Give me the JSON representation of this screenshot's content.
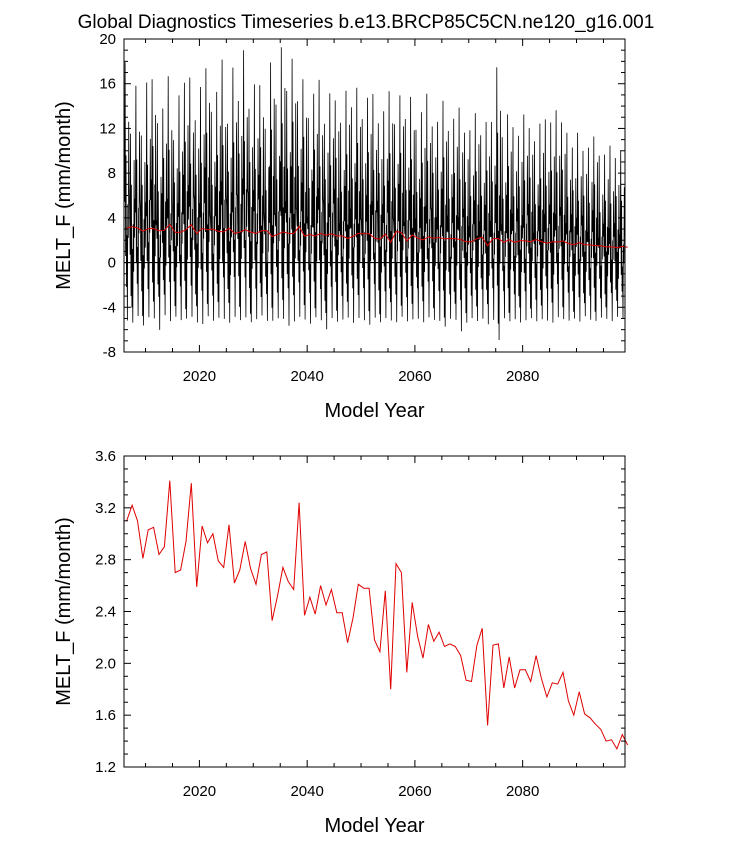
{
  "title": "Global Diagnostics Timeseries b.e13.BRCP85C5CN.ne120_g16.001",
  "colors": {
    "monthly": "#000000",
    "annual": "#e00000",
    "axis": "#000000",
    "background": "#ffffff"
  },
  "chart_data": [
    {
      "type": "line",
      "name": "monthly-timeseries",
      "xlabel": "Model Year",
      "ylabel": "MELT_F (mm/month)",
      "xlim": [
        2006,
        2099
      ],
      "ylim": [
        -8,
        20
      ],
      "xticks": [
        2020,
        2040,
        2060,
        2080
      ],
      "yticks": [
        -8,
        -4,
        0,
        4,
        8,
        12,
        16,
        20
      ],
      "ytick_labels": [
        "-8",
        "-4",
        "0",
        "4",
        "8",
        "12",
        "16",
        "20"
      ],
      "zero_line": 0,
      "series": [
        {
          "name": "monthly MELT_F",
          "color": "#000000",
          "description": "monthly values, strong seasonal cycle",
          "annual_peaks": [
            17.9,
            11.5,
            15.8,
            11.4,
            16.1,
            16.4,
            12.5,
            13.8,
            16.6,
            11.0,
            15.0,
            16.1,
            16.5,
            12.8,
            15.7,
            17.4,
            13.5,
            15.3,
            18.2,
            12.4,
            17.5,
            14.5,
            19.0,
            13.8,
            16.0,
            15.9,
            12.0,
            18.0,
            14.2,
            19.3,
            15.4,
            18.3,
            14.4,
            16.5,
            13.0,
            15.2,
            16.4,
            12.5,
            15.2,
            14.6,
            12.6,
            15.5,
            14.0,
            15.7,
            12.9,
            14.8,
            15.2,
            12.6,
            13.6,
            15.5,
            12.4,
            15.0,
            13.0,
            14.9,
            12.0,
            13.6,
            15.2,
            12.3,
            12.7,
            14.6,
            11.9,
            13.0,
            14.0,
            11.8,
            12.0,
            13.5,
            11.5,
            12.8,
            12.7,
            17.6,
            11.4,
            13.4,
            12.3,
            11.5,
            13.4,
            12.2,
            11.0,
            12.6,
            13.0,
            12.7,
            13.8,
            12.7,
            11.8,
            10.5,
            11.8,
            10.2,
            10.5,
            11.5,
            9.8,
            9.9,
            10.7,
            9.6,
            10.3
          ],
          "annual_troughs": [
            -5.2,
            -5.4,
            -4.8,
            -5.6,
            -4.9,
            -5.0,
            -6.0,
            -4.7,
            -5.3,
            -4.8,
            -5.1,
            -5.0,
            -4.9,
            -5.3,
            -5.5,
            -4.8,
            -5.2,
            -4.9,
            -5.0,
            -5.4,
            -4.8,
            -5.1,
            -4.9,
            -5.3,
            -5.0,
            -4.7,
            -5.2,
            -5.1,
            -4.9,
            -5.0,
            -5.6,
            -5.2,
            -4.9,
            -5.0,
            -5.4,
            -4.8,
            -5.1,
            -5.9,
            -4.9,
            -5.2,
            -5.0,
            -4.8,
            -5.3,
            -4.9,
            -5.1,
            -5.5,
            -4.8,
            -5.2,
            -4.9,
            -5.0,
            -5.3,
            -4.8,
            -5.1,
            -5.0,
            -4.9,
            -5.2,
            -4.8,
            -5.0,
            -5.1,
            -5.6,
            -4.9,
            -5.0,
            -6.0,
            -5.2,
            -4.8,
            -5.1,
            -4.9,
            -5.3,
            -5.0,
            -6.8,
            -4.8,
            -5.1,
            -4.9,
            -5.2,
            -5.0,
            -4.8,
            -5.1,
            -4.9,
            -5.0,
            -5.2,
            -4.7,
            -4.9,
            -5.0,
            -4.8,
            -5.1,
            -4.6,
            -4.9,
            -5.0,
            -4.7,
            -4.8,
            -5.0,
            -4.6,
            -4.8
          ]
        },
        {
          "name": "annual mean MELT_F",
          "color": "#e00000",
          "ref": "annual"
        }
      ]
    },
    {
      "type": "line",
      "name": "annual-mean",
      "xlabel": "Model Year",
      "ylabel": "MELT_F (mm/month)",
      "xlim": [
        2006,
        2099
      ],
      "ylim": [
        1.2,
        3.6
      ],
      "xticks": [
        2020,
        2040,
        2060,
        2080
      ],
      "yticks": [
        1.2,
        1.6,
        2.0,
        2.4,
        2.8,
        3.2,
        3.6
      ],
      "ytick_labels": [
        "1.2",
        "1.6",
        "2.0",
        "2.4",
        "2.8",
        "3.2",
        "3.6"
      ],
      "x": [
        2006,
        2007,
        2008,
        2009,
        2010,
        2011,
        2012,
        2013,
        2014,
        2015,
        2016,
        2017,
        2018,
        2019,
        2020,
        2021,
        2022,
        2023,
        2024,
        2025,
        2026,
        2027,
        2028,
        2029,
        2030,
        2031,
        2032,
        2033,
        2034,
        2035,
        2036,
        2037,
        2038,
        2039,
        2040,
        2041,
        2042,
        2043,
        2044,
        2045,
        2046,
        2047,
        2048,
        2049,
        2050,
        2051,
        2052,
        2053,
        2054,
        2055,
        2056,
        2057,
        2058,
        2059,
        2060,
        2061,
        2062,
        2063,
        2064,
        2065,
        2066,
        2067,
        2068,
        2069,
        2070,
        2071,
        2072,
        2073,
        2074,
        2075,
        2076,
        2077,
        2078,
        2079,
        2080,
        2081,
        2082,
        2083,
        2084,
        2085,
        2086,
        2087,
        2088,
        2089,
        2090,
        2091,
        2092,
        2093,
        2094,
        2095,
        2096,
        2097,
        2098,
        2099
      ],
      "series": [
        {
          "name": "annual mean MELT_F",
          "color": "#e00000",
          "values": [
            3.1,
            3.22,
            3.1,
            2.81,
            3.03,
            3.05,
            2.84,
            2.9,
            3.41,
            2.7,
            2.72,
            2.94,
            3.39,
            2.59,
            3.06,
            2.93,
            3.0,
            2.79,
            2.74,
            3.07,
            2.62,
            2.72,
            2.94,
            2.73,
            2.61,
            2.84,
            2.86,
            2.33,
            2.52,
            2.74,
            2.63,
            2.57,
            3.24,
            2.37,
            2.51,
            2.38,
            2.6,
            2.45,
            2.57,
            2.39,
            2.39,
            2.16,
            2.35,
            2.61,
            2.58,
            2.58,
            2.18,
            2.09,
            2.56,
            1.8,
            2.77,
            2.7,
            1.93,
            2.47,
            2.21,
            2.04,
            2.3,
            2.17,
            2.24,
            2.13,
            2.15,
            2.13,
            2.06,
            1.87,
            1.86,
            2.14,
            2.27,
            1.52,
            2.14,
            2.15,
            1.81,
            2.05,
            1.81,
            1.95,
            1.95,
            1.86,
            2.06,
            1.88,
            1.74,
            1.85,
            1.84,
            1.93,
            1.71,
            1.6,
            1.78,
            1.61,
            1.58,
            1.53,
            1.49,
            1.4,
            1.41,
            1.34,
            1.45,
            1.37
          ]
        }
      ]
    }
  ]
}
